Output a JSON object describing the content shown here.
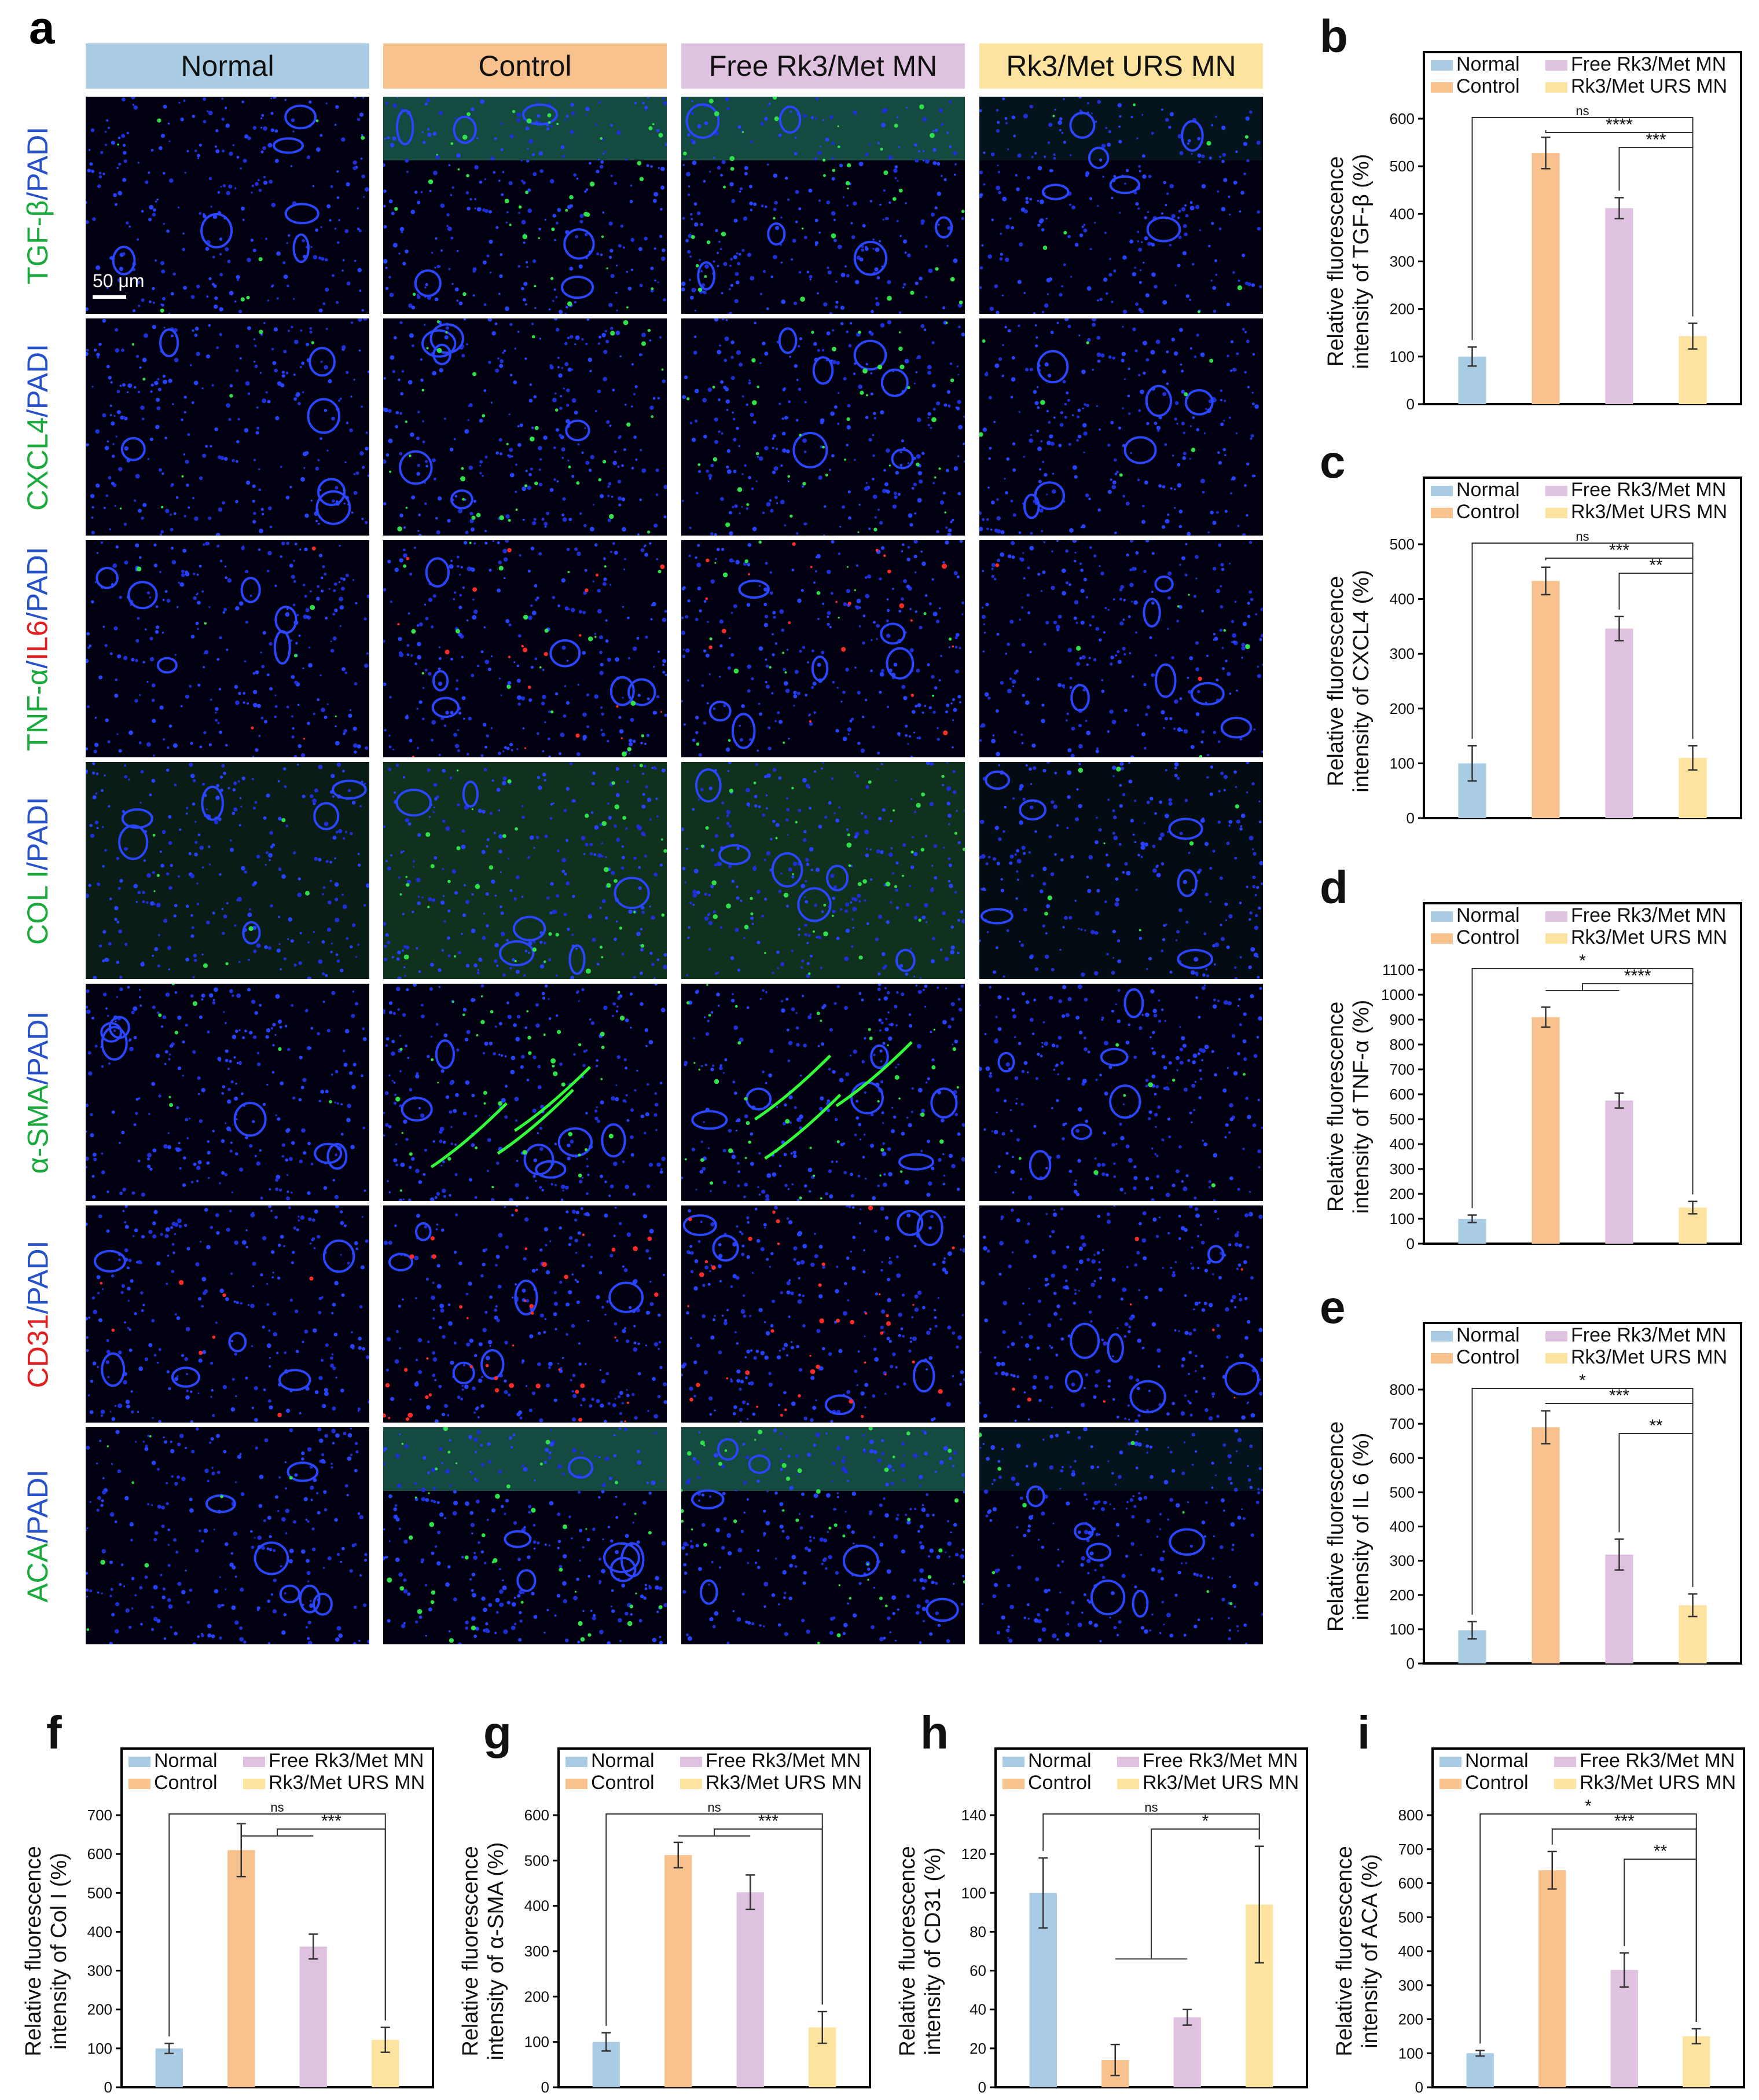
{
  "figure": {
    "panel_a_letter": "a",
    "columns": [
      "Normal",
      "Control",
      "Free Rk3/Met MN",
      "Rk3/Met URS MN"
    ],
    "column_colors": [
      "#a9cbe4",
      "#f8c28e",
      "#dfc2df",
      "#fde3a0"
    ],
    "rows": [
      {
        "label_parts": [
          {
            "text": "TGF-β",
            "color": "#1aaa3c"
          },
          {
            "text": "/PADI",
            "color": "#2651c8"
          }
        ],
        "stain": "green"
      },
      {
        "label_parts": [
          {
            "text": "CXCL4",
            "color": "#1aaa3c"
          },
          {
            "text": "/PADI",
            "color": "#2651c8"
          }
        ],
        "stain": "green"
      },
      {
        "label_parts": [
          {
            "text": "TNF-α",
            "color": "#1aaa3c"
          },
          {
            "text": "/",
            "color": "#2651c8"
          },
          {
            "text": "IL6",
            "color": "#e02020"
          },
          {
            "text": "/PADI",
            "color": "#2651c8"
          }
        ],
        "stain": "green-red"
      },
      {
        "label_parts": [
          {
            "text": "COL I",
            "color": "#1aaa3c"
          },
          {
            "text": "/PADI",
            "color": "#2651c8"
          }
        ],
        "stain": "green"
      },
      {
        "label_parts": [
          {
            "text": "α-SMA",
            "color": "#1aaa3c"
          },
          {
            "text": "/PADI",
            "color": "#2651c8"
          }
        ],
        "stain": "green"
      },
      {
        "label_parts": [
          {
            "text": "CD31",
            "color": "#e02020"
          },
          {
            "text": "/PADI",
            "color": "#2651c8"
          }
        ],
        "stain": "red"
      },
      {
        "label_parts": [
          {
            "text": "ACA",
            "color": "#1aaa3c"
          },
          {
            "text": "/PADI",
            "color": "#2651c8"
          }
        ],
        "stain": "green"
      }
    ],
    "scale_bar_label": "50 μm"
  },
  "chart_data": [
    {
      "panel": "b",
      "type": "bar",
      "categories": [
        "Normal",
        "Control",
        "Free Rk3/Met MN",
        "Rk3/Met URS MN"
      ],
      "colors": [
        "#a9cbe4",
        "#f8c28e",
        "#dfc2df",
        "#fde3a0"
      ],
      "values": [
        100,
        528,
        412,
        143
      ],
      "errors": [
        20,
        33,
        22,
        27
      ],
      "ylabel": [
        "Relative fluorescence",
        "intensity of TGF-β (%)"
      ],
      "ylim": [
        0,
        600
      ],
      "yticks": [
        0,
        100,
        200,
        300,
        400,
        500,
        600
      ],
      "legend": [
        "Normal",
        "Control",
        "Free Rk3/Met MN",
        "Rk3/Met URS MN"
      ],
      "significance": [
        {
          "from": 0,
          "to": 3,
          "label": "ns",
          "level": 0
        },
        {
          "from": 1,
          "to": 3,
          "label": "****",
          "level": 1
        },
        {
          "from": 2,
          "to": 3,
          "label": "***",
          "level": 2
        }
      ]
    },
    {
      "panel": "c",
      "type": "bar",
      "categories": [
        "Normal",
        "Control",
        "Free Rk3/Met MN",
        "Rk3/Met URS MN"
      ],
      "colors": [
        "#a9cbe4",
        "#f8c28e",
        "#dfc2df",
        "#fde3a0"
      ],
      "values": [
        100,
        433,
        346,
        110
      ],
      "errors": [
        32,
        25,
        22,
        22
      ],
      "ylabel": [
        "Relative fluorescence",
        "intensity of CXCL4 (%)"
      ],
      "ylim": [
        0,
        500
      ],
      "yticks": [
        0,
        100,
        200,
        300,
        400,
        500
      ],
      "legend": [
        "Normal",
        "Control",
        "Free Rk3/Met MN",
        "Rk3/Met URS MN"
      ],
      "significance": [
        {
          "from": 0,
          "to": 3,
          "label": "ns",
          "level": 0
        },
        {
          "from": 1,
          "to": 3,
          "label": "***",
          "level": 1
        },
        {
          "from": 2,
          "to": 3,
          "label": "**",
          "level": 2
        }
      ]
    },
    {
      "panel": "d",
      "type": "bar",
      "categories": [
        "Normal",
        "Control",
        "Free Rk3/Met MN",
        "Rk3/Met URS MN"
      ],
      "colors": [
        "#a9cbe4",
        "#f8c28e",
        "#dfc2df",
        "#fde3a0"
      ],
      "values": [
        100,
        910,
        575,
        145
      ],
      "errors": [
        15,
        40,
        30,
        25
      ],
      "ylabel": [
        "Relative fluorescence",
        "intensity of TNF-α (%)"
      ],
      "ylim": [
        0,
        1100
      ],
      "yticks": [
        0,
        100,
        200,
        300,
        400,
        500,
        600,
        700,
        800,
        900,
        1000,
        1100
      ],
      "legend": [
        "Normal",
        "Control",
        "Free Rk3/Met MN",
        "Rk3/Met URS MN"
      ],
      "significance": [
        {
          "from": 0,
          "to": 3,
          "label": "*",
          "level": 0
        },
        {
          "from": 1,
          "to": 3,
          "label": "****",
          "level": 1,
          "bracket_from": [
            1,
            2
          ]
        }
      ]
    },
    {
      "panel": "e",
      "type": "bar",
      "categories": [
        "Normal",
        "Control",
        "Free Rk3/Met MN",
        "Rk3/Met URS MN"
      ],
      "colors": [
        "#a9cbe4",
        "#f8c28e",
        "#dfc2df",
        "#fde3a0"
      ],
      "values": [
        97,
        690,
        318,
        170
      ],
      "errors": [
        25,
        48,
        45,
        33
      ],
      "ylabel": [
        "Relative fluorescence",
        "intensity of IL 6 (%)"
      ],
      "ylim": [
        0,
        800
      ],
      "yticks": [
        0,
        100,
        200,
        300,
        400,
        500,
        600,
        700,
        800
      ],
      "legend": [
        "Normal",
        "Control",
        "Free Rk3/Met MN",
        "Rk3/Met URS MN"
      ],
      "significance": [
        {
          "from": 0,
          "to": 3,
          "label": "*",
          "level": 0
        },
        {
          "from": 1,
          "to": 3,
          "label": "***",
          "level": 1
        },
        {
          "from": 2,
          "to": 3,
          "label": "**",
          "level": 3
        }
      ]
    },
    {
      "panel": "f",
      "type": "bar",
      "categories": [
        "Normal",
        "Control",
        "Free Rk3/Met MN",
        "Rk3/Met URS MN"
      ],
      "colors": [
        "#a9cbe4",
        "#f8c28e",
        "#dfc2df",
        "#fde3a0"
      ],
      "values": [
        100,
        610,
        362,
        122
      ],
      "errors": [
        13,
        68,
        32,
        32
      ],
      "ylabel": [
        "Relative fluorescence",
        "intensity of Col I (%)"
      ],
      "ylim": [
        0,
        700
      ],
      "yticks": [
        0,
        100,
        200,
        300,
        400,
        500,
        600,
        700
      ],
      "legend": [
        "Normal",
        "Control",
        "Free Rk3/Met MN",
        "Rk3/Met URS MN"
      ],
      "significance": [
        {
          "from": 0,
          "to": 3,
          "label": "ns",
          "level": 0
        },
        {
          "from": 1,
          "to": 3,
          "label": "***",
          "level": 1,
          "bracket_from": [
            1,
            2
          ]
        }
      ]
    },
    {
      "panel": "g",
      "type": "bar",
      "categories": [
        "Normal",
        "Control",
        "Free Rk3/Met MN",
        "Rk3/Met URS MN"
      ],
      "colors": [
        "#a9cbe4",
        "#f8c28e",
        "#dfc2df",
        "#fde3a0"
      ],
      "values": [
        100,
        512,
        430,
        132
      ],
      "errors": [
        20,
        28,
        38,
        35
      ],
      "ylabel": [
        "Relative fluorescence",
        "intensity of α-SMA (%)"
      ],
      "ylim": [
        0,
        600
      ],
      "yticks": [
        0,
        100,
        200,
        300,
        400,
        500,
        600
      ],
      "legend": [
        "Normal",
        "Control",
        "Free Rk3/Met MN",
        "Rk3/Met URS MN"
      ],
      "significance": [
        {
          "from": 0,
          "to": 3,
          "label": "ns",
          "level": 0
        },
        {
          "from": 1,
          "to": 3,
          "label": "***",
          "level": 1,
          "bracket_from": [
            1,
            2
          ]
        }
      ]
    },
    {
      "panel": "h",
      "type": "bar",
      "categories": [
        "Normal",
        "Control",
        "Free Rk3/Met MN",
        "Rk3/Met URS MN"
      ],
      "colors": [
        "#a9cbe4",
        "#f8c28e",
        "#dfc2df",
        "#fde3a0"
      ],
      "values": [
        100,
        14,
        36,
        94
      ],
      "errors": [
        18,
        8,
        4,
        30
      ],
      "ylabel": [
        "Relative fluorescence",
        "intensity of CD31 (%)"
      ],
      "ylim": [
        0,
        140
      ],
      "yticks": [
        0,
        20,
        40,
        60,
        80,
        100,
        120,
        140
      ],
      "legend": [
        "Normal",
        "Control",
        "Free Rk3/Met MN",
        "Rk3/Met URS MN"
      ],
      "significance": [
        {
          "from": 0,
          "to": 3,
          "label": "ns",
          "level": 0
        },
        {
          "from": 1,
          "to": 3,
          "label": "*",
          "level": 1,
          "bracket_from": [
            1,
            2
          ],
          "low_group": true
        }
      ]
    },
    {
      "panel": "i",
      "type": "bar",
      "categories": [
        "Normal",
        "Control",
        "Free Rk3/Met MN",
        "Rk3/Met URS MN"
      ],
      "colors": [
        "#a9cbe4",
        "#f8c28e",
        "#dfc2df",
        "#fde3a0"
      ],
      "values": [
        100,
        638,
        345,
        150
      ],
      "errors": [
        8,
        55,
        50,
        22
      ],
      "ylabel": [
        "Relative fluorescence",
        "intensity of ACA (%)"
      ],
      "ylim": [
        0,
        800
      ],
      "yticks": [
        0,
        100,
        200,
        300,
        400,
        500,
        600,
        700,
        800
      ],
      "legend": [
        "Normal",
        "Control",
        "Free Rk3/Met MN",
        "Rk3/Met URS MN"
      ],
      "significance": [
        {
          "from": 0,
          "to": 3,
          "label": "*",
          "level": 0
        },
        {
          "from": 1,
          "to": 3,
          "label": "***",
          "level": 1
        },
        {
          "from": 2,
          "to": 3,
          "label": "**",
          "level": 3
        }
      ]
    }
  ]
}
